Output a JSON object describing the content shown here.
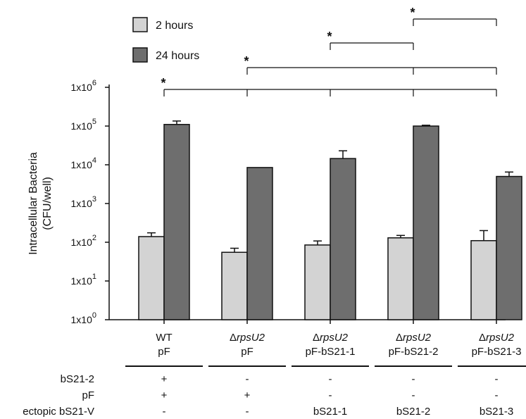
{
  "chart_data": {
    "type": "bar",
    "yscale": "log",
    "ylim": [
      1,
      1000000
    ],
    "ylabel_lines": [
      "Intracellular Bacteria",
      "(CFU/well)"
    ],
    "yticks": [
      {
        "value": 1,
        "base": "1x10",
        "exp": "0"
      },
      {
        "value": 10,
        "base": "1x10",
        "exp": "1"
      },
      {
        "value": 100,
        "base": "1x10",
        "exp": "2"
      },
      {
        "value": 1000,
        "base": "1x10",
        "exp": "3"
      },
      {
        "value": 10000,
        "base": "1x10",
        "exp": "4"
      },
      {
        "value": 100000,
        "base": "1x10",
        "exp": "5"
      },
      {
        "value": 1000000,
        "base": "1x10",
        "exp": "6"
      }
    ],
    "categories": [
      {
        "prefix": "",
        "italic": "",
        "line1": "WT",
        "line2": "pF"
      },
      {
        "prefix": "Δ",
        "italic": "rpsU2",
        "line1": "",
        "line2": "pF"
      },
      {
        "prefix": "Δ",
        "italic": "rpsU2",
        "line1": "",
        "line2": "pF-bS21-1"
      },
      {
        "prefix": "Δ",
        "italic": "rpsU2",
        "line1": "",
        "line2": "pF-bS21-2"
      },
      {
        "prefix": "Δ",
        "italic": "rpsU2",
        "line1": "",
        "line2": "pF-bS21-3"
      }
    ],
    "series": [
      {
        "name": "2 hours",
        "color": "#d3d3d3",
        "values": [
          140,
          55,
          85,
          130,
          110
        ],
        "err_high": [
          175,
          70,
          108,
          150,
          200
        ]
      },
      {
        "name": "24 hours",
        "color": "#6e6e6e",
        "values": [
          110000,
          8500,
          14500,
          100000,
          5000
        ],
        "err_high": [
          135000,
          8500,
          23000,
          105000,
          6500
        ]
      }
    ],
    "significance": [
      {
        "from": 0,
        "to": 4,
        "drops": [
          0,
          1,
          2,
          3,
          4
        ],
        "label": "*"
      },
      {
        "from": 1,
        "to": 4,
        "drops": [
          1,
          3,
          4
        ],
        "label": "*"
      },
      {
        "from": 2,
        "to": 3,
        "drops": [
          2,
          3
        ],
        "label": "*"
      },
      {
        "from": 3,
        "to": 4,
        "drops": [
          3,
          4
        ],
        "label": "*"
      }
    ],
    "table_rows": [
      {
        "label": "bS21-2",
        "values": [
          "+",
          "-",
          "-",
          "-",
          "-"
        ]
      },
      {
        "label": "pF",
        "values": [
          "+",
          "+",
          "-",
          "-",
          "-"
        ]
      },
      {
        "label": "ectopic bS21-V",
        "values": [
          "-",
          "-",
          "bS21-1",
          "bS21-2",
          "bS21-3"
        ]
      }
    ]
  }
}
